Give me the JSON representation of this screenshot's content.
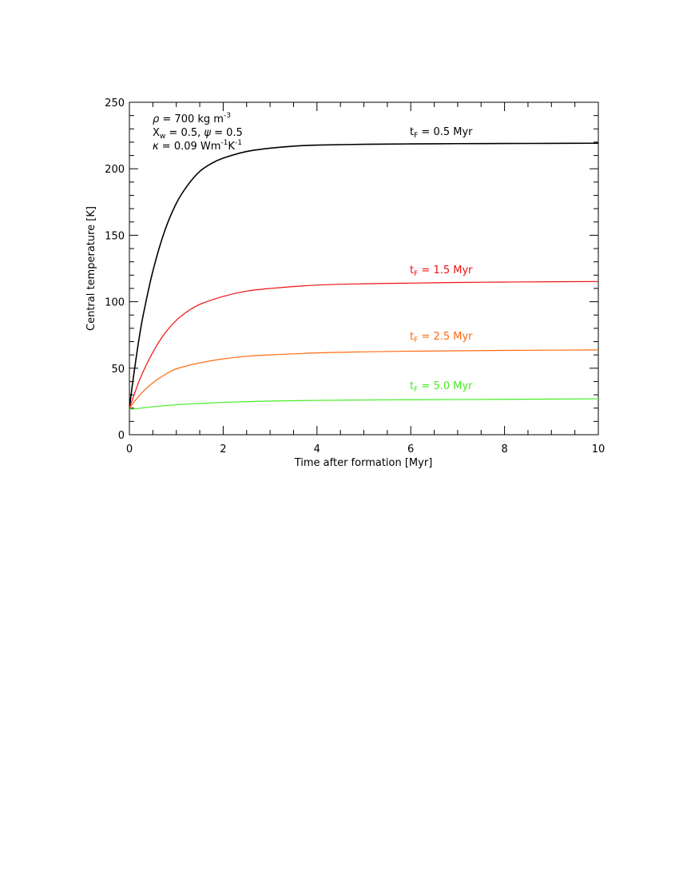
{
  "chart_data": {
    "type": "line",
    "xlabel": "Time after formation [Myr]",
    "ylabel": "Central temperature [K]",
    "xlim": [
      0,
      10
    ],
    "ylim": [
      0,
      250
    ],
    "xticks": [
      0,
      2,
      4,
      6,
      8,
      10
    ],
    "yticks": [
      0,
      50,
      100,
      150,
      200,
      250
    ],
    "grid": false,
    "annotations": {
      "rho": {
        "symbol": "ρ",
        "value": " = 700 kg m",
        "sup": "-3"
      },
      "xw_psi": {
        "symbol": "X",
        "sub": "w",
        "mid": " = 0.5, ",
        "symbol2": "ψ",
        "value": " = 0.5"
      },
      "kappa": {
        "symbol": "κ",
        "value": " = 0.09 Wm",
        "sup1": "-1",
        "mid": "K",
        "sup2": "-1"
      }
    },
    "series": [
      {
        "name": "t_F = 0.5 Myr",
        "label_base": "t",
        "label_sub": "F",
        "label_value": " = 0.5 Myr",
        "color": "#000000",
        "x": [
          0,
          0.05,
          0.1,
          0.2,
          0.3,
          0.5,
          0.75,
          1.0,
          1.25,
          1.5,
          1.75,
          2.0,
          2.5,
          3.0,
          3.5,
          4.0,
          5.0,
          6.0,
          7.0,
          8.0,
          9.0,
          10.0
        ],
        "y": [
          20,
          34,
          47,
          71,
          91,
          123,
          153,
          174,
          188,
          198,
          204,
          208,
          213,
          215.5,
          217,
          217.8,
          218.4,
          218.7,
          218.9,
          219.0,
          219.1,
          219.2
        ]
      },
      {
        "name": "t_F = 1.5 Myr",
        "label_base": "t",
        "label_sub": "F",
        "label_value": " = 1.5 Myr",
        "color": "#ee1111",
        "x": [
          0,
          0.1,
          0.25,
          0.5,
          0.75,
          1.0,
          1.25,
          1.5,
          2.0,
          2.5,
          3.0,
          4.0,
          5.0,
          6.0,
          7.0,
          8.0,
          9.0,
          10.0
        ],
        "y": [
          20,
          30,
          44,
          62,
          76,
          86,
          93,
          98,
          104,
          108,
          110,
          112.5,
          113.5,
          114,
          114.5,
          114.8,
          115,
          115.2
        ]
      },
      {
        "name": "t_F = 2.5 Myr",
        "label_base": "t",
        "label_sub": "F",
        "label_value": " = 2.5 Myr",
        "color": "#ff6a10",
        "x": [
          0,
          0.25,
          0.5,
          0.75,
          1.0,
          1.5,
          2.0,
          2.5,
          3.0,
          4.0,
          5.0,
          6.0,
          7.0,
          8.0,
          9.0,
          10.0
        ],
        "y": [
          20,
          31,
          39,
          45,
          49.5,
          54,
          57,
          59,
          60,
          61.5,
          62.3,
          62.8,
          63.1,
          63.4,
          63.6,
          63.8
        ]
      },
      {
        "name": "t_F = 5.0 Myr",
        "label_base": "t",
        "label_sub": "F",
        "label_value": " = 5.0 Myr",
        "color": "#44ee22",
        "x": [
          0,
          0.5,
          1.0,
          1.5,
          2.0,
          3.0,
          4.0,
          5.0,
          6.0,
          8.0,
          10.0
        ],
        "y": [
          19,
          21,
          22.5,
          23.5,
          24.3,
          25.3,
          25.8,
          26.1,
          26.3,
          26.6,
          27
        ]
      }
    ]
  }
}
